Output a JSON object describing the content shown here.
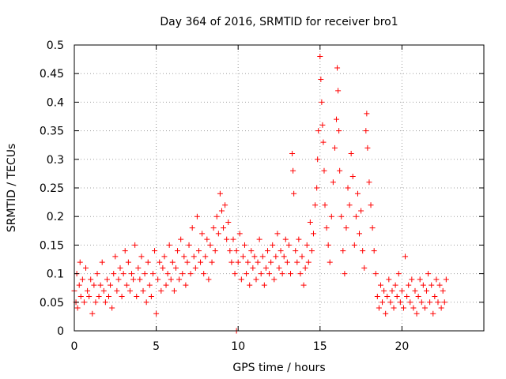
{
  "chart_data": {
    "type": "scatter",
    "title": "Day 364 of 2016, SRMTID for receiver bro1",
    "xlabel": "GPS time / hours",
    "ylabel": "SRMTID / TECUs",
    "xlim": [
      0,
      25
    ],
    "ylim": [
      0,
      0.5
    ],
    "xticks": [
      0,
      5,
      10,
      15,
      20
    ],
    "yticks": [
      0,
      0.05,
      0.1,
      0.15,
      0.2,
      0.25,
      0.3,
      0.35,
      0.4,
      0.45,
      0.5
    ],
    "xtick_labels": [
      "0",
      "5",
      "10",
      "15",
      "20"
    ],
    "ytick_labels": [
      "0",
      "0.05",
      "0.1",
      "0.15",
      "0.2",
      "0.25",
      "0.3",
      "0.35",
      "0.4",
      "0.45",
      "0.5"
    ],
    "grid": true,
    "marker": "+",
    "color": "#ff0000",
    "series": [
      {
        "name": "SRMTID",
        "points": [
          [
            0.0,
            0.07
          ],
          [
            0.1,
            0.05
          ],
          [
            0.15,
            0.1
          ],
          [
            0.2,
            0.04
          ],
          [
            0.3,
            0.08
          ],
          [
            0.35,
            0.12
          ],
          [
            0.4,
            0.06
          ],
          [
            0.5,
            0.09
          ],
          [
            0.6,
            0.05
          ],
          [
            0.7,
            0.11
          ],
          [
            0.8,
            0.07
          ],
          [
            0.9,
            0.06
          ],
          [
            1.0,
            0.09
          ],
          [
            1.1,
            0.03
          ],
          [
            1.2,
            0.08
          ],
          [
            1.3,
            0.05
          ],
          [
            1.4,
            0.1
          ],
          [
            1.5,
            0.06
          ],
          [
            1.6,
            0.08
          ],
          [
            1.7,
            0.12
          ],
          [
            1.8,
            0.07
          ],
          [
            1.9,
            0.05
          ],
          [
            2.0,
            0.09
          ],
          [
            2.1,
            0.06
          ],
          [
            2.2,
            0.08
          ],
          [
            2.3,
            0.04
          ],
          [
            2.4,
            0.1
          ],
          [
            2.5,
            0.13
          ],
          [
            2.6,
            0.07
          ],
          [
            2.7,
            0.09
          ],
          [
            2.8,
            0.11
          ],
          [
            2.9,
            0.06
          ],
          [
            3.0,
            0.1
          ],
          [
            3.1,
            0.14
          ],
          [
            3.2,
            0.08
          ],
          [
            3.3,
            0.12
          ],
          [
            3.4,
            0.07
          ],
          [
            3.5,
            0.1
          ],
          [
            3.6,
            0.09
          ],
          [
            3.7,
            0.15
          ],
          [
            3.8,
            0.06
          ],
          [
            3.9,
            0.11
          ],
          [
            4.0,
            0.09
          ],
          [
            4.1,
            0.13
          ],
          [
            4.2,
            0.07
          ],
          [
            4.3,
            0.1
          ],
          [
            4.4,
            0.05
          ],
          [
            4.5,
            0.12
          ],
          [
            4.6,
            0.08
          ],
          [
            4.7,
            0.06
          ],
          [
            4.8,
            0.1
          ],
          [
            4.9,
            0.14
          ],
          [
            5.0,
            0.03
          ],
          [
            5.1,
            0.09
          ],
          [
            5.2,
            0.12
          ],
          [
            5.3,
            0.07
          ],
          [
            5.4,
            0.11
          ],
          [
            5.5,
            0.13
          ],
          [
            5.6,
            0.08
          ],
          [
            5.7,
            0.1
          ],
          [
            5.8,
            0.15
          ],
          [
            5.9,
            0.09
          ],
          [
            6.0,
            0.12
          ],
          [
            6.1,
            0.07
          ],
          [
            6.2,
            0.11
          ],
          [
            6.3,
            0.14
          ],
          [
            6.4,
            0.09
          ],
          [
            6.5,
            0.16
          ],
          [
            6.6,
            0.1
          ],
          [
            6.7,
            0.13
          ],
          [
            6.8,
            0.08
          ],
          [
            6.9,
            0.12
          ],
          [
            7.0,
            0.15
          ],
          [
            7.1,
            0.1
          ],
          [
            7.2,
            0.18
          ],
          [
            7.3,
            0.13
          ],
          [
            7.4,
            0.11
          ],
          [
            7.5,
            0.2
          ],
          [
            7.6,
            0.14
          ],
          [
            7.7,
            0.12
          ],
          [
            7.8,
            0.17
          ],
          [
            7.9,
            0.1
          ],
          [
            8.0,
            0.13
          ],
          [
            8.1,
            0.16
          ],
          [
            8.2,
            0.09
          ],
          [
            8.3,
            0.15
          ],
          [
            8.4,
            0.12
          ],
          [
            8.5,
            0.18
          ],
          [
            8.6,
            0.14
          ],
          [
            8.7,
            0.2
          ],
          [
            8.8,
            0.17
          ],
          [
            8.9,
            0.24
          ],
          [
            9.0,
            0.21
          ],
          [
            9.1,
            0.18
          ],
          [
            9.2,
            0.22
          ],
          [
            9.3,
            0.16
          ],
          [
            9.4,
            0.19
          ],
          [
            9.5,
            0.14
          ],
          [
            9.6,
            0.12
          ],
          [
            9.7,
            0.16
          ],
          [
            9.8,
            0.1
          ],
          [
            9.9,
            0.14
          ],
          [
            10.0,
            0.12
          ],
          [
            10.1,
            0.17
          ],
          [
            10.2,
            0.09
          ],
          [
            10.3,
            0.13
          ],
          [
            10.4,
            0.15
          ],
          [
            10.5,
            0.1
          ],
          [
            10.6,
            0.12
          ],
          [
            10.7,
            0.08
          ],
          [
            10.8,
            0.14
          ],
          [
            10.9,
            0.11
          ],
          [
            11.0,
            0.13
          ],
          [
            11.1,
            0.09
          ],
          [
            11.2,
            0.12
          ],
          [
            11.3,
            0.16
          ],
          [
            11.4,
            0.1
          ],
          [
            11.5,
            0.13
          ],
          [
            11.6,
            0.08
          ],
          [
            11.7,
            0.11
          ],
          [
            11.8,
            0.14
          ],
          [
            11.9,
            0.1
          ],
          [
            12.0,
            0.12
          ],
          [
            12.1,
            0.15
          ],
          [
            12.2,
            0.09
          ],
          [
            12.3,
            0.13
          ],
          [
            12.4,
            0.17
          ],
          [
            12.5,
            0.11
          ],
          [
            12.6,
            0.14
          ],
          [
            12.7,
            0.1
          ],
          [
            12.8,
            0.13
          ],
          [
            12.9,
            0.16
          ],
          [
            13.0,
            0.12
          ],
          [
            13.1,
            0.15
          ],
          [
            13.2,
            0.1
          ],
          [
            13.3,
            0.31
          ],
          [
            13.35,
            0.28
          ],
          [
            13.4,
            0.24
          ],
          [
            13.5,
            0.14
          ],
          [
            13.6,
            0.12
          ],
          [
            13.7,
            0.16
          ],
          [
            13.8,
            0.1
          ],
          [
            13.9,
            0.13
          ],
          [
            14.0,
            0.08
          ],
          [
            14.1,
            0.11
          ],
          [
            14.2,
            0.15
          ],
          [
            14.3,
            0.12
          ],
          [
            14.4,
            0.19
          ],
          [
            14.5,
            0.14
          ],
          [
            14.6,
            0.17
          ],
          [
            14.7,
            0.22
          ],
          [
            14.8,
            0.25
          ],
          [
            14.85,
            0.3
          ],
          [
            14.9,
            0.35
          ],
          [
            15.0,
            0.48
          ],
          [
            15.05,
            0.44
          ],
          [
            15.1,
            0.4
          ],
          [
            15.15,
            0.36
          ],
          [
            15.2,
            0.33
          ],
          [
            15.25,
            0.28
          ],
          [
            15.3,
            0.22
          ],
          [
            15.4,
            0.18
          ],
          [
            15.5,
            0.15
          ],
          [
            15.6,
            0.12
          ],
          [
            15.7,
            0.2
          ],
          [
            15.8,
            0.26
          ],
          [
            15.9,
            0.32
          ],
          [
            16.0,
            0.37
          ],
          [
            16.05,
            0.46
          ],
          [
            16.1,
            0.42
          ],
          [
            16.15,
            0.35
          ],
          [
            16.2,
            0.28
          ],
          [
            16.3,
            0.2
          ],
          [
            16.4,
            0.14
          ],
          [
            16.5,
            0.1
          ],
          [
            16.6,
            0.18
          ],
          [
            16.7,
            0.25
          ],
          [
            16.8,
            0.22
          ],
          [
            16.9,
            0.31
          ],
          [
            17.0,
            0.27
          ],
          [
            17.1,
            0.15
          ],
          [
            17.2,
            0.2
          ],
          [
            17.3,
            0.24
          ],
          [
            17.4,
            0.17
          ],
          [
            17.5,
            0.21
          ],
          [
            17.6,
            0.14
          ],
          [
            17.7,
            0.11
          ],
          [
            17.8,
            0.35
          ],
          [
            17.85,
            0.38
          ],
          [
            17.9,
            0.32
          ],
          [
            18.0,
            0.26
          ],
          [
            18.1,
            0.22
          ],
          [
            18.2,
            0.18
          ],
          [
            18.3,
            0.14
          ],
          [
            18.4,
            0.1
          ],
          [
            18.5,
            0.06
          ],
          [
            18.6,
            0.04
          ],
          [
            18.7,
            0.08
          ],
          [
            18.8,
            0.05
          ],
          [
            18.9,
            0.07
          ],
          [
            19.0,
            0.03
          ],
          [
            19.1,
            0.06
          ],
          [
            19.2,
            0.09
          ],
          [
            19.3,
            0.05
          ],
          [
            19.4,
            0.07
          ],
          [
            19.5,
            0.04
          ],
          [
            19.6,
            0.08
          ],
          [
            19.7,
            0.06
          ],
          [
            19.8,
            0.1
          ],
          [
            19.9,
            0.05
          ],
          [
            20.0,
            0.07
          ],
          [
            20.1,
            0.04
          ],
          [
            20.2,
            0.13
          ],
          [
            20.3,
            0.06
          ],
          [
            20.4,
            0.08
          ],
          [
            20.5,
            0.05
          ],
          [
            20.6,
            0.09
          ],
          [
            20.7,
            0.04
          ],
          [
            20.8,
            0.07
          ],
          [
            20.9,
            0.03
          ],
          [
            21.0,
            0.06
          ],
          [
            21.1,
            0.09
          ],
          [
            21.2,
            0.05
          ],
          [
            21.3,
            0.08
          ],
          [
            21.4,
            0.04
          ],
          [
            21.5,
            0.07
          ],
          [
            21.6,
            0.1
          ],
          [
            21.7,
            0.05
          ],
          [
            21.8,
            0.08
          ],
          [
            21.9,
            0.03
          ],
          [
            22.0,
            0.06
          ],
          [
            22.1,
            0.09
          ],
          [
            22.2,
            0.05
          ],
          [
            22.3,
            0.08
          ],
          [
            22.4,
            0.04
          ],
          [
            22.5,
            0.07
          ],
          [
            22.6,
            0.05
          ],
          [
            22.7,
            0.09
          ],
          [
            9.9,
            0.0
          ]
        ]
      }
    ]
  }
}
